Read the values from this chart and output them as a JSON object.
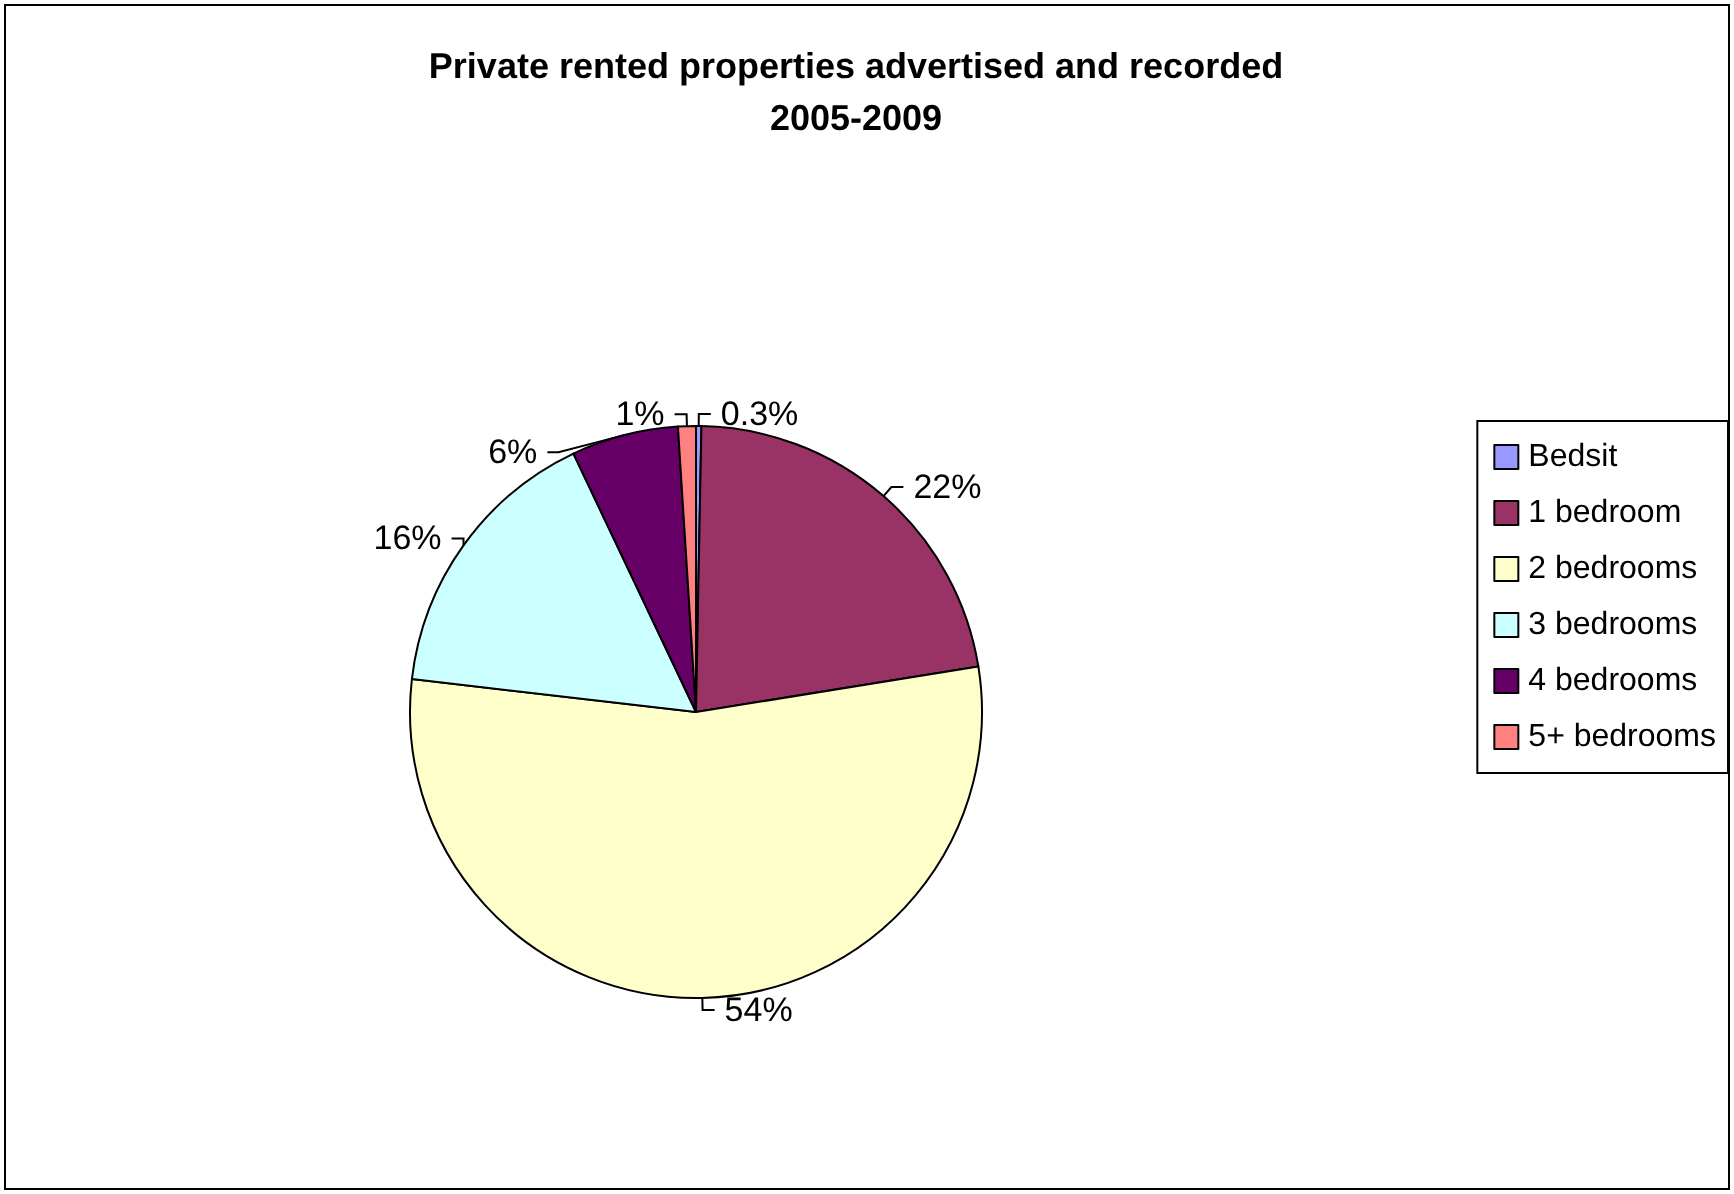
{
  "chart_data": {
    "type": "pie",
    "title": "Private rented properties advertised and recorded\n2005-2009",
    "categories": [
      "Bedsit",
      "1 bedroom",
      "2 bedrooms",
      "3 bedrooms",
      "4 bedrooms",
      "5+ bedrooms"
    ],
    "values": [
      0.3,
      22,
      54,
      16,
      6,
      1
    ],
    "colors": [
      "#9999ff",
      "#993366",
      "#ffffcc",
      "#ccffff",
      "#660066",
      "#ff8080"
    ],
    "value_labels": [
      "0.3%",
      "22%",
      "54%",
      "16%",
      "6%",
      "1%"
    ],
    "legend": "right"
  }
}
